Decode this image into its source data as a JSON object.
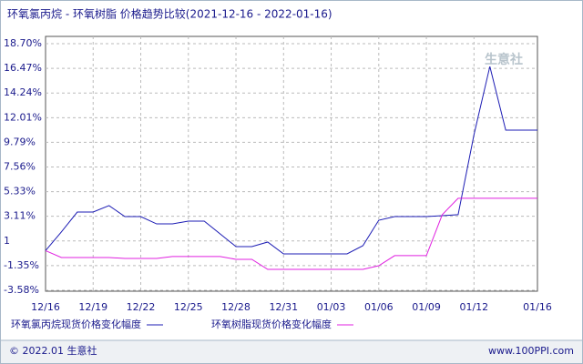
{
  "chart_data": {
    "type": "line",
    "title": "环氧氯丙烷 - 环氧树脂 价格趋势比较(2021-12-16 - 2022-01-16)",
    "watermark": "生意社",
    "footer_left": "© 2022.01 生意社",
    "footer_right": "www.100PPI.com",
    "categories": [
      "12/16",
      null,
      null,
      "12/19",
      null,
      null,
      "12/22",
      null,
      null,
      "12/25",
      null,
      null,
      "12/28",
      null,
      null,
      "12/31",
      null,
      null,
      "01/03",
      null,
      null,
      "01/06",
      null,
      null,
      "01/09",
      null,
      null,
      "01/12",
      null,
      null,
      null,
      "01/16"
    ],
    "series": [
      {
        "name": "环氧氯丙烷现货价格变化幅度",
        "color": "#1c1cb4",
        "values": [
          0,
          1.7,
          3.49,
          3.49,
          4.07,
          3.08,
          3.08,
          2.42,
          2.42,
          2.67,
          2.67,
          1.52,
          0.37,
          0.37,
          0.78,
          -0.29,
          -0.29,
          -0.29,
          -0.29,
          -0.29,
          0.45,
          2.75,
          3.08,
          3.08,
          3.08,
          3.16,
          3.25,
          10.48,
          16.64,
          10.89,
          10.89,
          10.89
        ]
      },
      {
        "name": "环氧树脂现货价格变化幅度",
        "color": "#e020e0",
        "values": [
          0,
          -0.62,
          -0.62,
          -0.62,
          -0.62,
          -0.7,
          -0.7,
          -0.7,
          -0.53,
          -0.53,
          -0.53,
          -0.53,
          -0.78,
          -0.78,
          -1.69,
          -1.69,
          -1.69,
          -1.69,
          -1.69,
          -1.69,
          -1.69,
          -1.36,
          -0.45,
          -0.45,
          -0.45,
          3.25,
          4.73,
          4.73,
          4.73,
          4.73,
          4.73,
          4.73
        ]
      }
    ],
    "ylim": [
      -3.58,
      18.7
    ],
    "yticks": [
      {
        "value": 18.7,
        "label": "18.70%"
      },
      {
        "value": 16.47,
        "label": "16.47%"
      },
      {
        "value": 14.24,
        "label": "14.24%"
      },
      {
        "value": 12.01,
        "label": "12.01%"
      },
      {
        "value": 9.79,
        "label": "9.79%"
      },
      {
        "value": 7.56,
        "label": "7.56%"
      },
      {
        "value": 5.33,
        "label": "5.33%"
      },
      {
        "value": 3.11,
        "label": "3.11%"
      },
      {
        "value": 0.88,
        "label": "1"
      },
      {
        "value": -1.35,
        "label": "-1.35%"
      },
      {
        "value": -3.58,
        "label": "-3.58%"
      }
    ],
    "grid": true
  }
}
